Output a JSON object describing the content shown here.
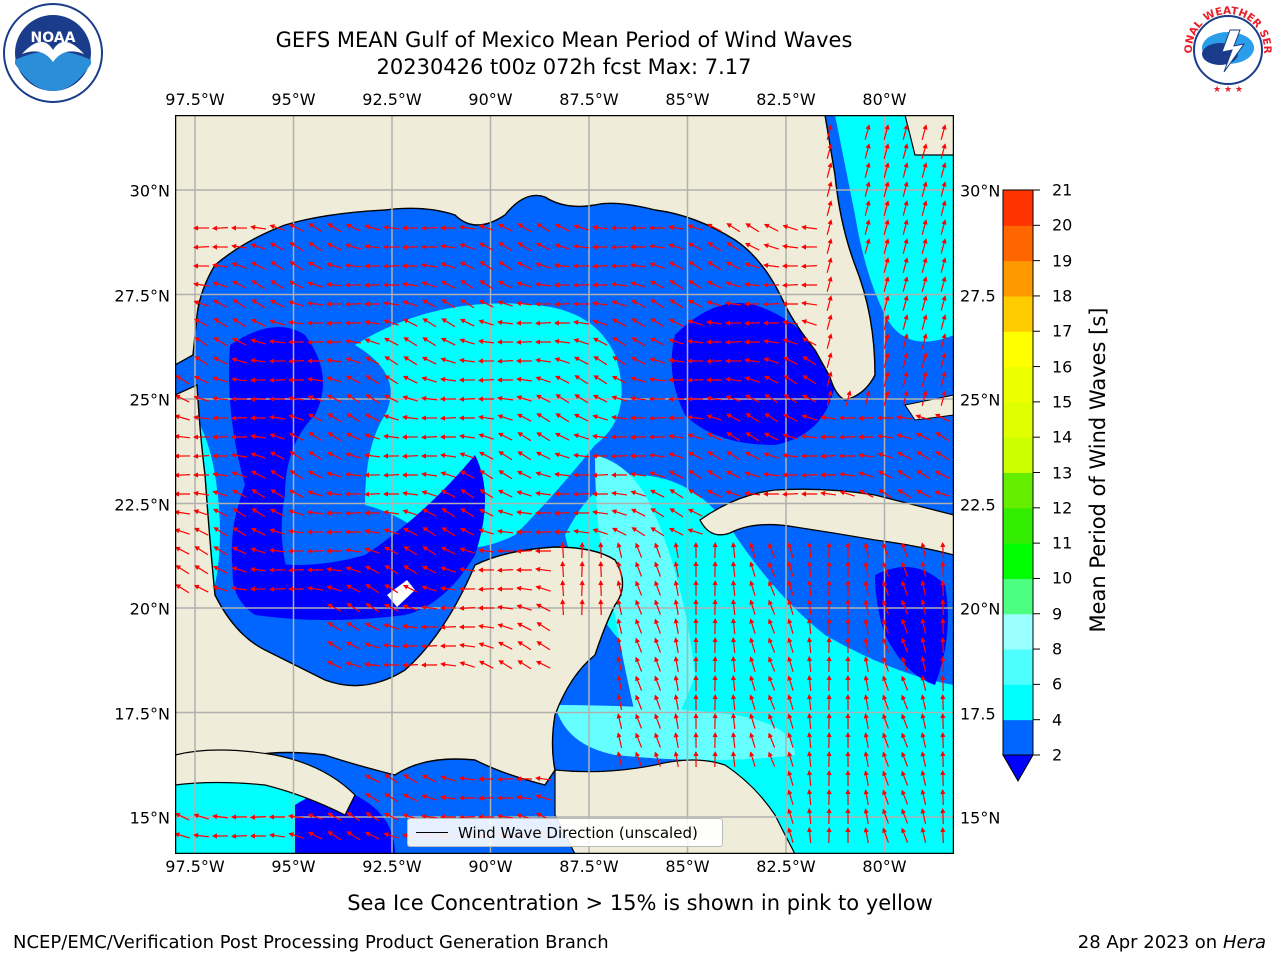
{
  "title": {
    "line1": "GEFS MEAN Gulf of Mexico Mean Period of Wind Waves",
    "line2": "20230426 t00z 072h fcst   Max: 7.17"
  },
  "map": {
    "lon_labels": [
      "97.5°W",
      "95°W",
      "92.5°W",
      "90°W",
      "87.5°W",
      "85°W",
      "82.5°W",
      "80°W"
    ],
    "lat_labels_left": [
      "30°N",
      "27.5°N",
      "25°N",
      "22.5°N",
      "20°N",
      "17.5°N",
      "15°N"
    ],
    "lat_labels_right": [
      "30°N",
      "27.5",
      "25°N",
      "22.5",
      "20°N",
      "17.5",
      "15°N"
    ],
    "colors": {
      "land": "#efedd9",
      "period_2_4": "#0066ff",
      "period_lt_2": "#0000ff",
      "period_4_6": "#00ffff",
      "period_6_8": "#66ffff",
      "arrow": "#ff0000"
    }
  },
  "legend": {
    "label": "Wind Wave Direction (unscaled)"
  },
  "colorbar": {
    "label": "Mean Period of Wind Waves [s]",
    "ticks": [
      "2",
      "4",
      "6",
      "8",
      "9",
      "10",
      "11",
      "12",
      "13",
      "14",
      "15",
      "16",
      "17",
      "18",
      "19",
      "20",
      "21"
    ],
    "colors": [
      "#0066ff",
      "#00ffff",
      "#4dffff",
      "#99ffff",
      "#4dff80",
      "#00ff00",
      "#33ee00",
      "#66ee00",
      "#ccff00",
      "#e0ff00",
      "#eeff00",
      "#ffff00",
      "#ffcc00",
      "#ff9900",
      "#ff6600",
      "#ff3300"
    ],
    "under_color": "#0000ff"
  },
  "note": "Sea Ice Concentration > 15% is shown in pink to yellow",
  "footer": {
    "left": "NCEP/EMC/Verification Post Processing Product Generation Branch",
    "right_date": "28 Apr 2023 on ",
    "right_host": "Hera"
  },
  "logos": {
    "noaa": "NOAA",
    "nws_text": "NATIONAL WEATHER SERVICE"
  }
}
